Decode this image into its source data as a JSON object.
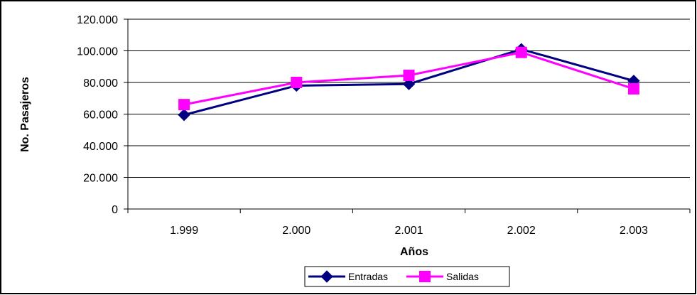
{
  "chart_data": {
    "type": "line",
    "categories": [
      "1.999",
      "2.000",
      "2.001",
      "2.002",
      "2.003"
    ],
    "series": [
      {
        "name": "Entradas",
        "values": [
          59500,
          78000,
          79000,
          101000,
          81000
        ],
        "color": "#000080",
        "marker": "diamond"
      },
      {
        "name": "Salidas",
        "values": [
          66000,
          80000,
          84500,
          99000,
          76000
        ],
        "color": "#ff00ff",
        "marker": "square"
      }
    ],
    "xlabel": "Años",
    "ylabel": "No. Pasajeros",
    "ylim": [
      0,
      120000
    ],
    "yticks": [
      0,
      20000,
      40000,
      60000,
      80000,
      100000,
      120000
    ],
    "ytick_labels": [
      "0",
      "20.000",
      "40.000",
      "60.000",
      "80.000",
      "100.000",
      "120.000"
    ],
    "grid": "horizontal",
    "legend_position": "bottom"
  }
}
